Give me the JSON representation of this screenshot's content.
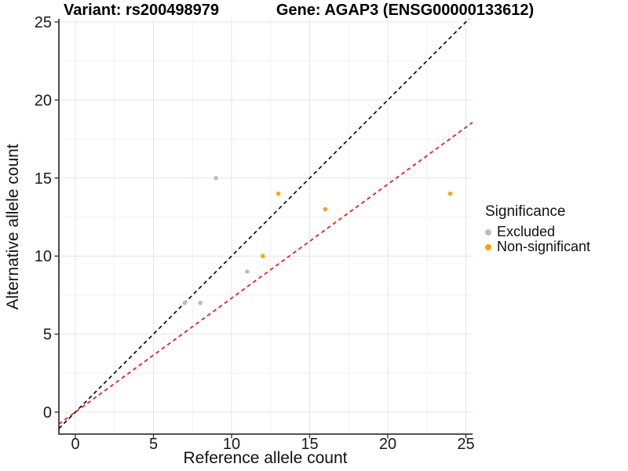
{
  "chart_data": {
    "type": "scatter",
    "title_left": "Variant: rs200498979",
    "title_right": "Gene: AGAP3 (ENSG00000133612)",
    "xlabel": "Reference allele count",
    "ylabel": "Alternative allele count",
    "xlim": [
      -1.05,
      25.45
    ],
    "ylim": [
      -1.4,
      25.2
    ],
    "xticks": [
      0,
      5,
      10,
      15,
      20,
      25
    ],
    "yticks": [
      0,
      5,
      10,
      15,
      20,
      25
    ],
    "grid": {
      "major": true,
      "minor": true,
      "major_color": "#e4e4e4",
      "minor_color": "#f1f1f1"
    },
    "background": "#ffffff",
    "axis_color": "#3a3a3a",
    "legend": {
      "title": "Significance",
      "position": "right"
    },
    "series": [
      {
        "name": "Excluded",
        "color": "#bcbcbc",
        "points": [
          [
            7,
            7
          ],
          [
            8,
            7
          ],
          [
            9,
            15
          ],
          [
            11,
            9
          ]
        ]
      },
      {
        "name": "Non-significant",
        "color": "#ffa500",
        "points": [
          [
            12,
            10
          ],
          [
            13,
            14
          ],
          [
            16,
            13
          ],
          [
            24,
            14
          ]
        ]
      }
    ],
    "reference_lines": [
      {
        "name": "identity",
        "slope": 1,
        "intercept": 0,
        "color": "#000000",
        "style": "dashed"
      },
      {
        "name": "expected-alt-ref-ratio",
        "slope": 0.73,
        "intercept": 0,
        "color": "#ff0000",
        "style": "dashed"
      }
    ]
  }
}
